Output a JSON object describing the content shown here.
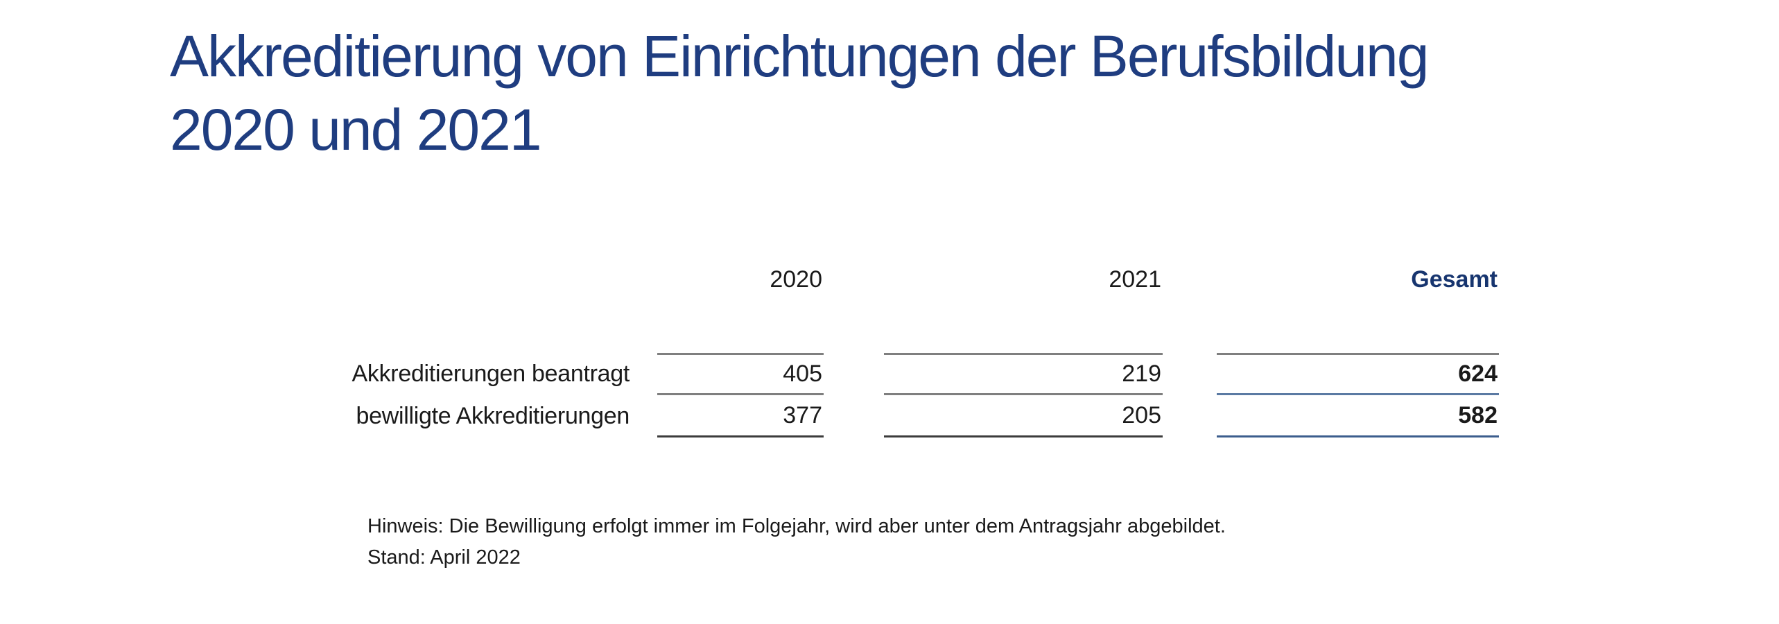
{
  "title": {
    "line1": "Akkreditierung von Einrichtungen der Berufsbildung",
    "line2": "2020 und 2021"
  },
  "table": {
    "headers": {
      "col_2020": "2020",
      "col_2021": "2021",
      "col_total": "Gesamt"
    },
    "rows": [
      {
        "label": "Akkreditierungen beantragt",
        "v2020": "405",
        "v2021": "219",
        "total": "624"
      },
      {
        "label": "bewilligte Akkreditierungen",
        "v2020": "377",
        "v2021": "205",
        "total": "582"
      }
    ]
  },
  "notes": {
    "line1": "Hinweis: Die Bewilligung erfolgt immer im Folgejahr, wird aber unter dem Antragsjahr abgebildet.",
    "line2": "Stand: April 2022"
  },
  "colors": {
    "title_navy": "#1f3d80",
    "total_navy": "#17356f",
    "text_black": "#1a1a1a",
    "rule_gray": "#7f7f7f",
    "rule_dark_gray": "#3c3c3c",
    "rule_steel_blue": "#5b7aa3",
    "rule_navy": "#3c5d8d",
    "background": "#ffffff"
  },
  "chart_data": {
    "type": "table",
    "title": "Akkreditierung von Einrichtungen der Berufsbildung 2020 und 2021",
    "categories": [
      "2020",
      "2021",
      "Gesamt"
    ],
    "series": [
      {
        "name": "Akkreditierungen beantragt",
        "values": [
          405,
          219,
          624
        ]
      },
      {
        "name": "bewilligte Akkreditierungen",
        "values": [
          377,
          205,
          582
        ]
      }
    ],
    "notes": [
      "Hinweis: Die Bewilligung erfolgt immer im Folgejahr, wird aber unter dem Antragsjahr abgebildet.",
      "Stand: April 2022"
    ],
    "layout": {
      "value_alignment": "right",
      "total_column_highlighted": true,
      "gridlines": "horizontal rules above and below value rows only"
    }
  }
}
